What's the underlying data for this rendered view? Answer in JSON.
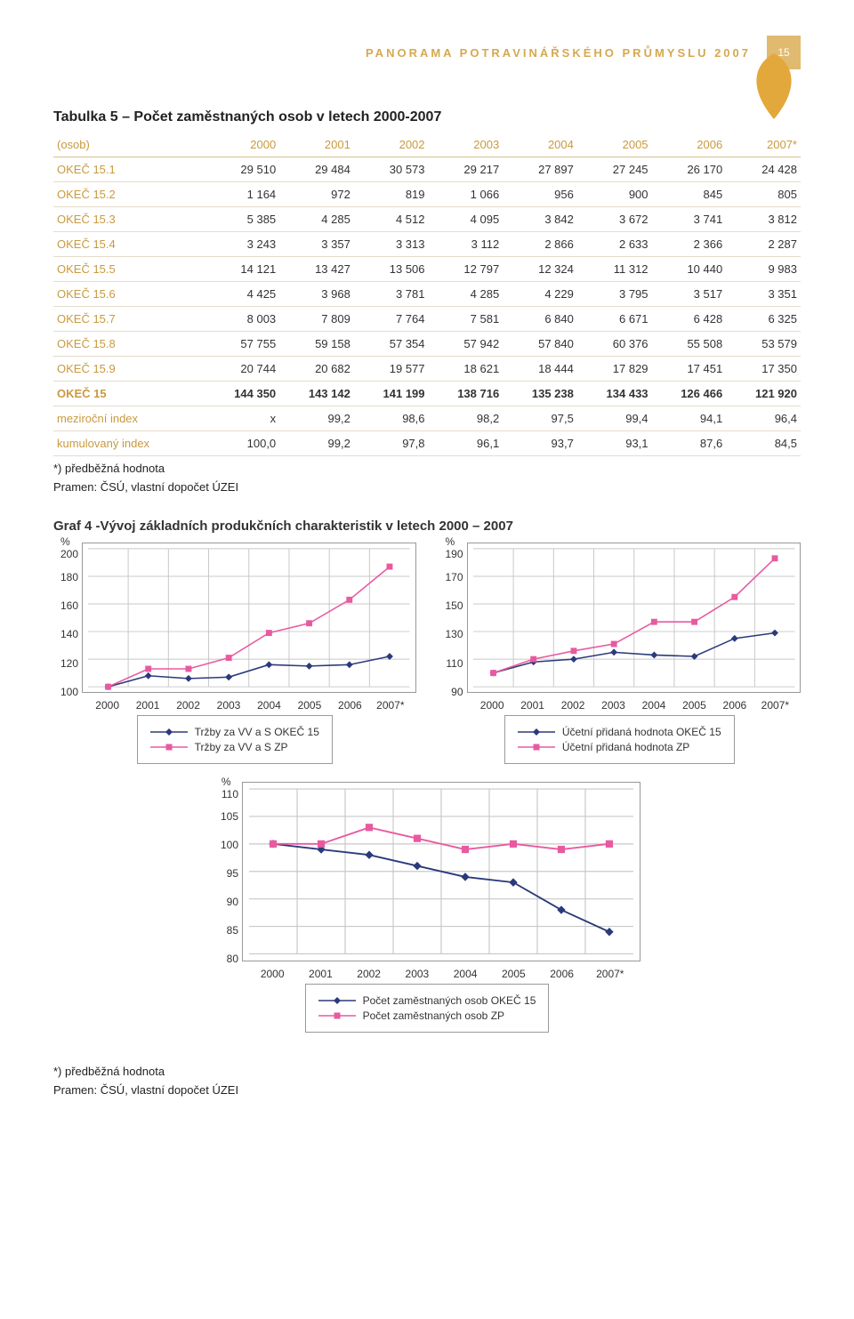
{
  "header": {
    "title": "PANORAMA POTRAVINÁŘSKÉHO PRŮMYSLU 2007",
    "page_number": "15"
  },
  "table": {
    "title": "Tabulka 5 – Počet zaměstnaných osob v letech 2000-2007",
    "first_col_header": "(osob)",
    "years": [
      "2000",
      "2001",
      "2002",
      "2003",
      "2004",
      "2005",
      "2006",
      "2007*"
    ],
    "rows": [
      {
        "label": "OKEČ 15.1",
        "cells": [
          "29 510",
          "29 484",
          "30 573",
          "29 217",
          "27 897",
          "27 245",
          "26 170",
          "24 428"
        ]
      },
      {
        "label": "OKEČ 15.2",
        "cells": [
          "1 164",
          "972",
          "819",
          "1 066",
          "956",
          "900",
          "845",
          "805"
        ]
      },
      {
        "label": "OKEČ 15.3",
        "cells": [
          "5 385",
          "4 285",
          "4 512",
          "4 095",
          "3 842",
          "3 672",
          "3 741",
          "3 812"
        ]
      },
      {
        "label": "OKEČ 15.4",
        "cells": [
          "3 243",
          "3 357",
          "3 313",
          "3 112",
          "2 866",
          "2 633",
          "2 366",
          "2 287"
        ]
      },
      {
        "label": "OKEČ 15.5",
        "cells": [
          "14 121",
          "13 427",
          "13 506",
          "12 797",
          "12 324",
          "11 312",
          "10 440",
          "9 983"
        ]
      },
      {
        "label": "OKEČ 15.6",
        "cells": [
          "4 425",
          "3 968",
          "3 781",
          "4 285",
          "4 229",
          "3 795",
          "3 517",
          "3 351"
        ]
      },
      {
        "label": "OKEČ 15.7",
        "cells": [
          "8 003",
          "7 809",
          "7 764",
          "7 581",
          "6 840",
          "6 671",
          "6 428",
          "6 325"
        ]
      },
      {
        "label": "OKEČ 15.8",
        "cells": [
          "57 755",
          "59 158",
          "57 354",
          "57 942",
          "57 840",
          "60 376",
          "55 508",
          "53 579"
        ]
      },
      {
        "label": "OKEČ 15.9",
        "cells": [
          "20 744",
          "20 682",
          "19 577",
          "18 621",
          "18 444",
          "17 829",
          "17 451",
          "17 350"
        ]
      }
    ],
    "total_row": {
      "label": "OKEČ 15",
      "cells": [
        "144 350",
        "143 142",
        "141 199",
        "138 716",
        "135 238",
        "134 433",
        "126 466",
        "121 920"
      ]
    },
    "index_rows": [
      {
        "label": "meziroční index",
        "cells": [
          "x",
          "99,2",
          "98,6",
          "98,2",
          "97,5",
          "99,4",
          "94,1",
          "96,4"
        ]
      },
      {
        "label": "kumulovaný index",
        "cells": [
          "100,0",
          "99,2",
          "97,8",
          "96,1",
          "93,7",
          "93,1",
          "87,6",
          "84,5"
        ]
      }
    ]
  },
  "footnote1": "*) předběžná hodnota",
  "footnote2": "Pramen: ČSÚ, vlastní dopočet ÚZEI",
  "charts_title": "Graf 4 -Vývoj základních produkčních charakteristik v letech 2000 – 2007",
  "charts": {
    "x_labels": [
      "2000",
      "2001",
      "2002",
      "2003",
      "2004",
      "2005",
      "2006",
      "2007*"
    ],
    "colors": {
      "blue": "#2b3a7a",
      "pink": "#e85aa0",
      "grid": "#c8c8c8",
      "border": "#7a7a7a",
      "leaf": "#e2a83b"
    },
    "chart1": {
      "pct_prefix": "%",
      "ylim": [
        100,
        200
      ],
      "ytick_step": 20,
      "series": [
        {
          "name": "Tržby za VV a S OKEČ 15",
          "color": "#2b3a7a",
          "marker": "diamond",
          "values": [
            100,
            108,
            106,
            107,
            116,
            115,
            116,
            122
          ]
        },
        {
          "name": "Tržby za VV a S ZP",
          "color": "#e85aa0",
          "marker": "square",
          "values": [
            100,
            113,
            113,
            121,
            139,
            146,
            163,
            187
          ]
        }
      ],
      "legend": [
        "Tržby za VV a S OKEČ 15",
        "Tržby za VV a S ZP"
      ]
    },
    "chart2": {
      "pct_prefix": "%",
      "ylim": [
        90,
        190
      ],
      "ytick_step": 20,
      "series": [
        {
          "name": "Účetní přidaná hodnota OKEČ 15",
          "color": "#2b3a7a",
          "marker": "diamond",
          "values": [
            100,
            108,
            110,
            115,
            113,
            112,
            125,
            129
          ]
        },
        {
          "name": "Účetní přidaná hodnota ZP",
          "color": "#e85aa0",
          "marker": "square",
          "values": [
            100,
            110,
            116,
            121,
            137,
            137,
            155,
            183
          ]
        }
      ],
      "legend": [
        "Účetní přidaná hodnota OKEČ 15",
        "Účetní přidaná hodnota ZP"
      ]
    },
    "chart3": {
      "pct_prefix": "%",
      "ylim": [
        80,
        110
      ],
      "ytick_step": 5,
      "series": [
        {
          "name": "Počet zaměstnaných osob OKEČ 15",
          "color": "#2b3a7a",
          "marker": "diamond",
          "values": [
            100,
            99,
            98,
            96,
            94,
            93,
            88,
            84
          ]
        },
        {
          "name": "Počet zaměstnaných osob ZP",
          "color": "#e85aa0",
          "marker": "square",
          "values": [
            100,
            100,
            103,
            101,
            99,
            100,
            99,
            100
          ]
        }
      ],
      "legend": [
        "Počet zaměstnaných osob OKEČ 15",
        "Počet zaměstnaných osob ZP"
      ]
    }
  }
}
